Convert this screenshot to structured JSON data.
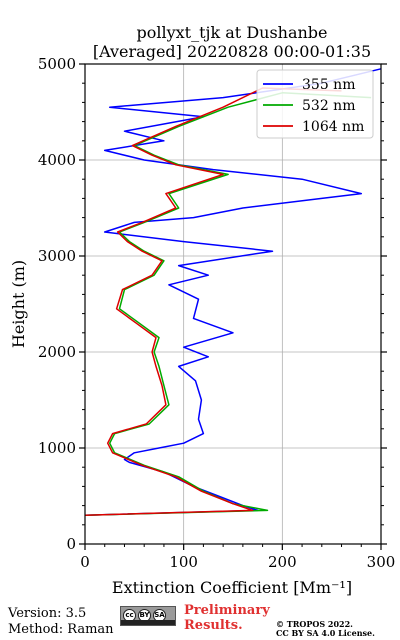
{
  "chart_data": {
    "type": "line",
    "title_line1": "pollyxt_tjk at Dushanbe",
    "title_line2": "[Averaged] 20220828 00:00-01:35",
    "xlabel": "Extinction Coefficient [Mm⁻¹]",
    "ylabel": "Height (m)",
    "xlim": [
      0,
      300
    ],
    "ylim": [
      0,
      5000
    ],
    "xticks": [
      0,
      100,
      200,
      300
    ],
    "yticks": [
      0,
      1000,
      2000,
      3000,
      4000,
      5000
    ],
    "xtick_labels": [
      "0",
      "100",
      "200",
      "300"
    ],
    "ytick_labels": [
      "0",
      "1000",
      "2000",
      "3000",
      "4000",
      "5000"
    ],
    "grid": true,
    "legend_position": "top-right",
    "series": [
      {
        "name": "355 nm",
        "color": "#0000ff",
        "points": [
          [
            0,
            300
          ],
          [
            175,
            350
          ],
          [
            160,
            400
          ],
          [
            135,
            500
          ],
          [
            110,
            600
          ],
          [
            80,
            750
          ],
          [
            45,
            850
          ],
          [
            40,
            880
          ],
          [
            50,
            950
          ],
          [
            75,
            1000
          ],
          [
            100,
            1050
          ],
          [
            120,
            1150
          ],
          [
            115,
            1300
          ],
          [
            118,
            1500
          ],
          [
            112,
            1700
          ],
          [
            95,
            1850
          ],
          [
            125,
            1950
          ],
          [
            100,
            2050
          ],
          [
            150,
            2200
          ],
          [
            110,
            2350
          ],
          [
            115,
            2550
          ],
          [
            85,
            2700
          ],
          [
            125,
            2800
          ],
          [
            95,
            2900
          ],
          [
            190,
            3050
          ],
          [
            100,
            3150
          ],
          [
            20,
            3250
          ],
          [
            50,
            3350
          ],
          [
            110,
            3400
          ],
          [
            160,
            3500
          ],
          [
            240,
            3600
          ],
          [
            280,
            3650
          ],
          [
            220,
            3800
          ],
          [
            130,
            3900
          ],
          [
            60,
            4000
          ],
          [
            20,
            4100
          ],
          [
            80,
            4200
          ],
          [
            40,
            4300
          ],
          [
            120,
            4450
          ],
          [
            25,
            4550
          ],
          [
            140,
            4650
          ],
          [
            240,
            4800
          ],
          [
            300,
            4950
          ]
        ]
      },
      {
        "name": "532 nm",
        "color": "#00aa00",
        "points": [
          [
            0,
            300
          ],
          [
            185,
            350
          ],
          [
            150,
            420
          ],
          [
            120,
            550
          ],
          [
            95,
            700
          ],
          [
            60,
            820
          ],
          [
            30,
            950
          ],
          [
            25,
            1050
          ],
          [
            30,
            1150
          ],
          [
            65,
            1250
          ],
          [
            85,
            1450
          ],
          [
            80,
            1650
          ],
          [
            75,
            1850
          ],
          [
            70,
            2000
          ],
          [
            75,
            2150
          ],
          [
            55,
            2300
          ],
          [
            35,
            2450
          ],
          [
            40,
            2650
          ],
          [
            70,
            2800
          ],
          [
            80,
            2950
          ],
          [
            60,
            3050
          ],
          [
            45,
            3150
          ],
          [
            35,
            3250
          ],
          [
            60,
            3350
          ],
          [
            95,
            3500
          ],
          [
            85,
            3650
          ],
          [
            145,
            3850
          ],
          [
            95,
            3950
          ],
          [
            70,
            4050
          ],
          [
            50,
            4150
          ],
          [
            95,
            4350
          ],
          [
            145,
            4550
          ],
          [
            200,
            4700
          ],
          [
            290,
            4650
          ]
        ]
      },
      {
        "name": "1064 nm",
        "color": "#dd0000",
        "points": [
          [
            0,
            300
          ],
          [
            170,
            350
          ],
          [
            150,
            420
          ],
          [
            118,
            550
          ],
          [
            92,
            700
          ],
          [
            58,
            820
          ],
          [
            28,
            950
          ],
          [
            23,
            1050
          ],
          [
            28,
            1150
          ],
          [
            62,
            1250
          ],
          [
            82,
            1450
          ],
          [
            78,
            1650
          ],
          [
            72,
            1850
          ],
          [
            68,
            2000
          ],
          [
            72,
            2150
          ],
          [
            52,
            2300
          ],
          [
            32,
            2450
          ],
          [
            38,
            2650
          ],
          [
            68,
            2800
          ],
          [
            78,
            2950
          ],
          [
            58,
            3050
          ],
          [
            43,
            3150
          ],
          [
            33,
            3250
          ],
          [
            58,
            3350
          ],
          [
            92,
            3500
          ],
          [
            82,
            3650
          ],
          [
            140,
            3850
          ],
          [
            92,
            3950
          ],
          [
            68,
            4050
          ],
          [
            48,
            4150
          ],
          [
            92,
            4350
          ],
          [
            140,
            4550
          ],
          [
            180,
            4750
          ],
          [
            260,
            4720
          ]
        ]
      }
    ]
  },
  "footer": {
    "version": "Version: 3.5",
    "method": "Method: Raman",
    "preliminary_line1": "Preliminary",
    "preliminary_line2": "Results.",
    "copyright_line1": "© TROPOS 2022.",
    "copyright_line2": "CC BY SA 4.0 License.",
    "badge_cc": "cc",
    "badge_by": "BY",
    "badge_sa": "SA"
  }
}
